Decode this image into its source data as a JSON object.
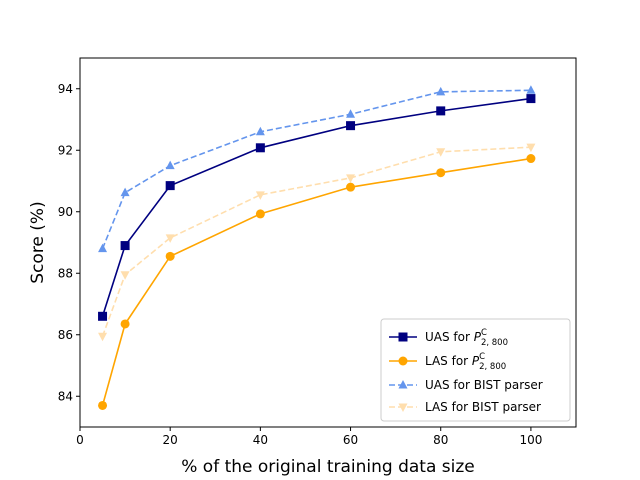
{
  "chart_data": {
    "type": "line",
    "title": "",
    "xlabel": "% of the original training data size",
    "ylabel": "Score (%)",
    "xlim": [
      0,
      110
    ],
    "ylim": [
      83,
      95
    ],
    "xticks": [
      0,
      20,
      40,
      60,
      80,
      100
    ],
    "yticks": [
      84,
      86,
      88,
      90,
      92,
      94
    ],
    "x": [
      5,
      10,
      20,
      40,
      60,
      80,
      100
    ],
    "legend_position": "lower-right",
    "series": [
      {
        "name": "UAS for P₂,₈₀₀ᶜ",
        "legend_base": "UAS for ",
        "legend_sym": "P",
        "legend_sup": "C",
        "legend_sub": "2, 800",
        "color": "#000080",
        "linestyle": "solid",
        "marker": "square",
        "values": [
          86.6,
          88.9,
          90.85,
          92.08,
          92.8,
          93.28,
          93.68
        ]
      },
      {
        "name": "LAS for P₂,₈₀₀ᶜ",
        "legend_base": "LAS for ",
        "legend_sym": "P",
        "legend_sup": "C",
        "legend_sub": "2, 800",
        "color": "#FFA500",
        "linestyle": "solid",
        "marker": "circle",
        "values": [
          83.7,
          86.35,
          88.55,
          89.93,
          90.8,
          91.27,
          91.73
        ]
      },
      {
        "name": "UAS for BIST parser",
        "legend_base": "UAS for BIST parser",
        "color": "#6495ED",
        "linestyle": "dashed",
        "marker": "triangle-up",
        "values": [
          88.8,
          90.62,
          91.5,
          92.6,
          93.17,
          93.9,
          93.95
        ]
      },
      {
        "name": "LAS for BIST parser",
        "legend_base": "LAS for BIST parser",
        "color": "#FFDEAD",
        "linestyle": "dashed",
        "marker": "triangle-down",
        "values": [
          85.95,
          87.95,
          89.15,
          90.55,
          91.1,
          91.95,
          92.1
        ]
      }
    ]
  }
}
